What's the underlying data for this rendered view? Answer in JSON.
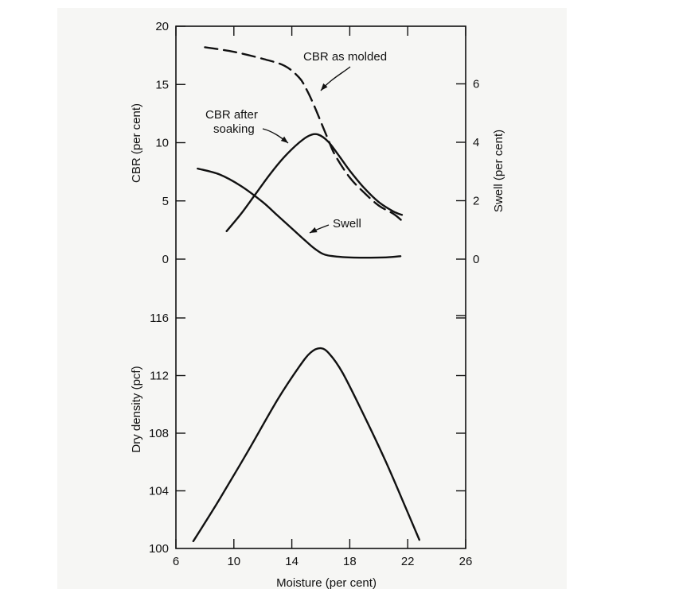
{
  "chart_data": [
    {
      "type": "line",
      "panel": "top",
      "x_range": [
        6,
        26
      ],
      "y_left": {
        "label": "CBR (per cent)",
        "ticks": [
          0,
          5,
          10,
          15,
          20
        ],
        "range": [
          0,
          20
        ]
      },
      "y_right": {
        "label": "Swell (per cent)",
        "ticks": [
          0,
          2,
          4,
          6
        ],
        "range": [
          0,
          8
        ]
      },
      "series": [
        {
          "name": "CBR as molded",
          "axis": "left",
          "style": "dashed",
          "points": [
            [
              8,
              18.2
            ],
            [
              10,
              17.8
            ],
            [
              12,
              17.2
            ],
            [
              13.5,
              16.6
            ],
            [
              14.5,
              15.6
            ],
            [
              15,
              14.6
            ],
            [
              15.5,
              13.3
            ],
            [
              16,
              11.8
            ],
            [
              16.5,
              10.3
            ],
            [
              17,
              8.9
            ],
            [
              18,
              7.0
            ],
            [
              19,
              5.7
            ],
            [
              20,
              4.6
            ],
            [
              21,
              3.9
            ],
            [
              21.6,
              3.3
            ]
          ]
        },
        {
          "name": "CBR after soaking",
          "axis": "left",
          "style": "solid",
          "points": [
            [
              9.5,
              2.4
            ],
            [
              10.5,
              3.9
            ],
            [
              11.5,
              5.6
            ],
            [
              12.5,
              7.3
            ],
            [
              13.5,
              8.8
            ],
            [
              14.5,
              10.0
            ],
            [
              15.2,
              10.6
            ],
            [
              15.8,
              10.7
            ],
            [
              16.5,
              10.1
            ],
            [
              17.3,
              8.8
            ],
            [
              18,
              7.6
            ],
            [
              19,
              6.1
            ],
            [
              20,
              4.9
            ],
            [
              21,
              4.1
            ],
            [
              21.6,
              3.8
            ]
          ]
        },
        {
          "name": "Swell",
          "axis": "right",
          "style": "solid",
          "points": [
            [
              7.5,
              3.1
            ],
            [
              9,
              2.9
            ],
            [
              10.5,
              2.5
            ],
            [
              12,
              1.95
            ],
            [
              13,
              1.5
            ],
            [
              14,
              1.05
            ],
            [
              15,
              0.6
            ],
            [
              15.6,
              0.35
            ],
            [
              16.3,
              0.15
            ],
            [
              17.5,
              0.07
            ],
            [
              19,
              0.05
            ],
            [
              20.5,
              0.06
            ],
            [
              21.5,
              0.1
            ]
          ]
        }
      ],
      "annotations": [
        {
          "text": "CBR as molded",
          "target_series": "CBR as molded"
        },
        {
          "text": "CBR after",
          "target_series": "CBR after soaking"
        },
        {
          "text": "soaking",
          "target_series": "CBR after soaking"
        },
        {
          "text": "Swell",
          "target_series": "Swell"
        }
      ]
    },
    {
      "type": "line",
      "panel": "bottom",
      "x_label": "Moisture (per cent)",
      "x_range": [
        6,
        26
      ],
      "x_ticks": [
        6,
        10,
        14,
        18,
        22,
        26
      ],
      "y_left": {
        "label": "Dry density (pcf)",
        "ticks": [
          100,
          104,
          108,
          112,
          116
        ],
        "range": [
          100,
          118
        ]
      },
      "series": [
        {
          "name": "Dry density",
          "style": "solid",
          "points": [
            [
              7.2,
              100.5
            ],
            [
              9,
              103.4
            ],
            [
              11,
              106.8
            ],
            [
              13,
              110.3
            ],
            [
              14.5,
              112.6
            ],
            [
              15.3,
              113.6
            ],
            [
              16,
              113.9
            ],
            [
              16.6,
              113.5
            ],
            [
              17.5,
              112.2
            ],
            [
              19,
              109.2
            ],
            [
              20.5,
              106.0
            ],
            [
              22,
              102.5
            ],
            [
              22.8,
              100.6
            ]
          ]
        }
      ]
    }
  ]
}
